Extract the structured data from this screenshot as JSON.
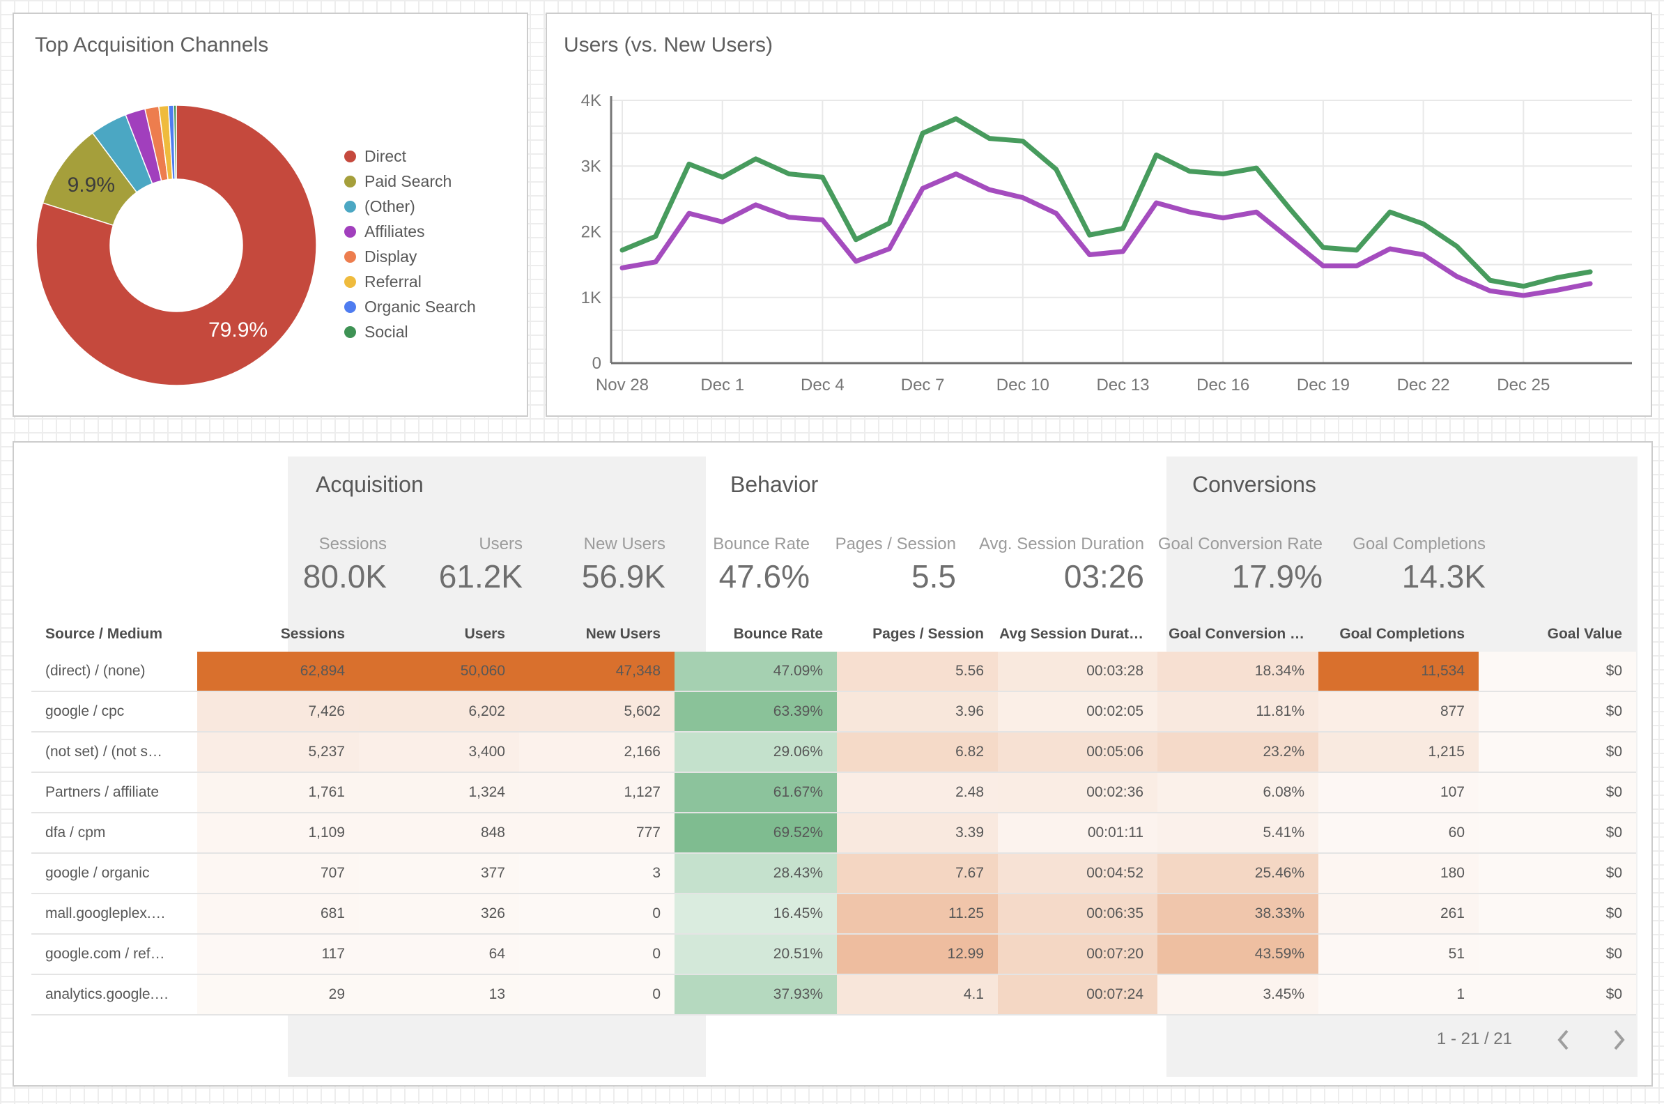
{
  "donut_card": {
    "title": "Top Acquisition Channels",
    "slices": [
      {
        "label": "Direct",
        "pct": 79.9,
        "color": "#C5493D",
        "data_label": "79.9%",
        "data_label_color": "#ffffff"
      },
      {
        "label": "Paid Search",
        "pct": 9.9,
        "color": "#A59F3B",
        "data_label": "9.9%",
        "data_label_color": "#3c3c3c"
      },
      {
        "label": "(Other)",
        "pct": 4.3,
        "color": "#4BA7C3"
      },
      {
        "label": "Affiliates",
        "pct": 2.3,
        "color": "#A13FBD"
      },
      {
        "label": "Display",
        "pct": 1.6,
        "color": "#ED7D4E"
      },
      {
        "label": "Referral",
        "pct": 1.1,
        "color": "#EFBB3D"
      },
      {
        "label": "Organic Search",
        "pct": 0.6,
        "color": "#4E7CF0"
      },
      {
        "label": "Social",
        "pct": 0.3,
        "color": "#3E9254"
      }
    ]
  },
  "line_card": {
    "title": "Users (vs. New Users)",
    "ytick_labels": [
      "0",
      "1K",
      "2K",
      "3K",
      "4K"
    ],
    "xtick_labels": [
      "Nov 28",
      "Dec 1",
      "Dec 4",
      "Dec 7",
      "Dec 10",
      "Dec 13",
      "Dec 16",
      "Dec 19",
      "Dec 22",
      "Dec 25"
    ],
    "series_colors": {
      "users": "#479B5D",
      "new_users": "#A44CBE"
    }
  },
  "table_card": {
    "sections": [
      {
        "title": "Acquisition",
        "cards": [
          {
            "label": "Sessions",
            "value": "80.0K"
          },
          {
            "label": "Users",
            "value": "61.2K"
          },
          {
            "label": "New Users",
            "value": "56.9K"
          }
        ]
      },
      {
        "title": "Behavior",
        "cards": [
          {
            "label": "Bounce Rate",
            "value": "47.6%"
          },
          {
            "label": "Pages / Session",
            "value": "5.5"
          },
          {
            "label": "Avg. Session Duration",
            "value": "03:26"
          }
        ]
      },
      {
        "title": "Conversions",
        "cards": [
          {
            "label": "Goal Conversion Rate",
            "value": "17.9%"
          },
          {
            "label": "Goal Completions",
            "value": "14.3K"
          }
        ]
      }
    ],
    "table": {
      "columns": [
        "Source / Medium",
        "Sessions",
        "Users",
        "New Users",
        "Bounce Rate",
        "Pages / Session",
        "Avg Session Durat…",
        "Goal Conversion …",
        "Goal Completions",
        "Goal Value"
      ],
      "rows": [
        [
          "(direct) / (none)",
          "62,894",
          "50,060",
          "47,348",
          "47.09%",
          "5.56",
          "00:03:28",
          "18.34%",
          "11,534",
          "$0"
        ],
        [
          "google / cpc",
          "7,426",
          "6,202",
          "5,602",
          "63.39%",
          "3.96",
          "00:02:05",
          "11.81%",
          "877",
          "$0"
        ],
        [
          "(not set) / (not s…",
          "5,237",
          "3,400",
          "2,166",
          "29.06%",
          "6.82",
          "00:05:06",
          "23.2%",
          "1,215",
          "$0"
        ],
        [
          "Partners / affiliate",
          "1,761",
          "1,324",
          "1,127",
          "61.67%",
          "2.48",
          "00:02:36",
          "6.08%",
          "107",
          "$0"
        ],
        [
          "dfa / cpm",
          "1,109",
          "848",
          "777",
          "69.52%",
          "3.39",
          "00:01:11",
          "5.41%",
          "60",
          "$0"
        ],
        [
          "google / organic",
          "707",
          "377",
          "3",
          "28.43%",
          "7.67",
          "00:04:52",
          "25.46%",
          "180",
          "$0"
        ],
        [
          "mall.googleplex.…",
          "681",
          "326",
          "0",
          "16.45%",
          "11.25",
          "00:06:35",
          "38.33%",
          "261",
          "$0"
        ],
        [
          "google.com / ref…",
          "117",
          "64",
          "0",
          "20.51%",
          "12.99",
          "00:07:20",
          "43.59%",
          "51",
          "$0"
        ],
        [
          "analytics.google.…",
          "29",
          "13",
          "0",
          "37.93%",
          "4.1",
          "00:07:24",
          "3.45%",
          "1",
          "$0"
        ]
      ],
      "heat_colors": {
        "orange": "#D9702D",
        "green": "#3D9A57"
      },
      "column_heat": [
        null,
        {
          "color": "orange",
          "max": 62894
        },
        {
          "color": "orange",
          "max": 50060
        },
        {
          "color": "orange",
          "max": 47348
        },
        {
          "color": "green",
          "max": 108
        },
        {
          "color": "orange",
          "max": 30
        },
        {
          "color": "orange",
          "max": 1780
        },
        {
          "color": "orange",
          "max": 104
        },
        {
          "color": "orange",
          "max": 11534
        },
        {
          "color": "orange",
          "max": 0
        }
      ]
    },
    "pagination": {
      "label": "1 - 21 / 21"
    }
  },
  "chart_data": [
    {
      "type": "pie",
      "title": "Top Acquisition Channels",
      "labels": [
        "Direct",
        "Paid Search",
        "(Other)",
        "Affiliates",
        "Display",
        "Referral",
        "Organic Search",
        "Social"
      ],
      "values": [
        79.9,
        9.9,
        4.3,
        2.3,
        1.6,
        1.1,
        0.6,
        0.3
      ],
      "colors": [
        "#C5493D",
        "#A59F3B",
        "#4BA7C3",
        "#A13FBD",
        "#ED7D4E",
        "#EFBB3D",
        "#4E7CF0",
        "#3E9254"
      ],
      "hole": 0.47,
      "shown_data_labels": {
        "Direct": "79.9%",
        "Paid Search": "9.9%"
      },
      "legend_position": "right"
    },
    {
      "type": "line",
      "title": "Users (vs. New Users)",
      "x": [
        "Nov 28",
        "Nov 29",
        "Nov 30",
        "Dec 1",
        "Dec 2",
        "Dec 3",
        "Dec 4",
        "Dec 5",
        "Dec 6",
        "Dec 7",
        "Dec 8",
        "Dec 9",
        "Dec 10",
        "Dec 11",
        "Dec 12",
        "Dec 13",
        "Dec 14",
        "Dec 15",
        "Dec 16",
        "Dec 17",
        "Dec 18",
        "Dec 19",
        "Dec 20",
        "Dec 21",
        "Dec 22",
        "Dec 23",
        "Dec 24",
        "Dec 25",
        "Dec 26",
        "Dec 27"
      ],
      "series": [
        {
          "name": "Users",
          "color": "#479B5D",
          "values": [
            1720,
            1930,
            3030,
            2830,
            3110,
            2880,
            2830,
            1880,
            2130,
            3500,
            3720,
            3420,
            3380,
            2950,
            1950,
            2050,
            3170,
            2920,
            2880,
            2970,
            2350,
            1760,
            1720,
            2300,
            2120,
            1780,
            1260,
            1170,
            1300,
            1390
          ]
        },
        {
          "name": "New Users",
          "color": "#A44CBE",
          "values": [
            1450,
            1540,
            2280,
            2150,
            2410,
            2220,
            2180,
            1550,
            1740,
            2660,
            2880,
            2640,
            2520,
            2280,
            1650,
            1700,
            2440,
            2300,
            2210,
            2300,
            1890,
            1480,
            1480,
            1740,
            1650,
            1320,
            1100,
            1030,
            1110,
            1210
          ]
        }
      ],
      "ylim": [
        0,
        4000
      ],
      "ytick_labels": [
        "0",
        "1K",
        "2K",
        "3K",
        "4K"
      ],
      "xtick_labels": [
        "Nov 28",
        "Dec 1",
        "Dec 4",
        "Dec 7",
        "Dec 10",
        "Dec 13",
        "Dec 16",
        "Dec 19",
        "Dec 22",
        "Dec 25"
      ],
      "grid": true,
      "legend_position": "none"
    },
    {
      "type": "table",
      "columns": [
        "Source / Medium",
        "Sessions",
        "Users",
        "New Users",
        "Bounce Rate",
        "Pages / Session",
        "Avg Session Durat…",
        "Goal Conversion …",
        "Goal Completions",
        "Goal Value"
      ],
      "rows": [
        [
          "(direct) / (none)",
          "62,894",
          "50,060",
          "47,348",
          "47.09%",
          "5.56",
          "00:03:28",
          "18.34%",
          "11,534",
          "$0"
        ],
        [
          "google / cpc",
          "7,426",
          "6,202",
          "5,602",
          "63.39%",
          "3.96",
          "00:02:05",
          "11.81%",
          "877",
          "$0"
        ],
        [
          "(not set) / (not s…",
          "5,237",
          "3,400",
          "2,166",
          "29.06%",
          "6.82",
          "00:05:06",
          "23.2%",
          "1,215",
          "$0"
        ],
        [
          "Partners / affiliate",
          "1,761",
          "1,324",
          "1,127",
          "61.67%",
          "2.48",
          "00:02:36",
          "6.08%",
          "107",
          "$0"
        ],
        [
          "dfa / cpm",
          "1,109",
          "848",
          "777",
          "69.52%",
          "3.39",
          "00:01:11",
          "5.41%",
          "60",
          "$0"
        ],
        [
          "google / organic",
          "707",
          "377",
          "3",
          "28.43%",
          "7.67",
          "00:04:52",
          "25.46%",
          "180",
          "$0"
        ],
        [
          "mall.googleplex.…",
          "681",
          "326",
          "0",
          "16.45%",
          "11.25",
          "00:06:35",
          "38.33%",
          "261",
          "$0"
        ],
        [
          "google.com / ref…",
          "117",
          "64",
          "0",
          "20.51%",
          "12.99",
          "00:07:20",
          "43.59%",
          "51",
          "$0"
        ],
        [
          "analytics.google.…",
          "29",
          "13",
          "0",
          "37.93%",
          "4.1",
          "00:07:24",
          "3.45%",
          "1",
          "$0"
        ]
      ],
      "summary": {
        "Sessions": "80.0K",
        "Users": "61.2K",
        "New Users": "56.9K",
        "Bounce Rate": "47.6%",
        "Pages / Session": "5.5",
        "Avg. Session Duration": "03:26",
        "Goal Conversion Rate": "17.9%",
        "Goal Completions": "14.3K"
      }
    }
  ]
}
